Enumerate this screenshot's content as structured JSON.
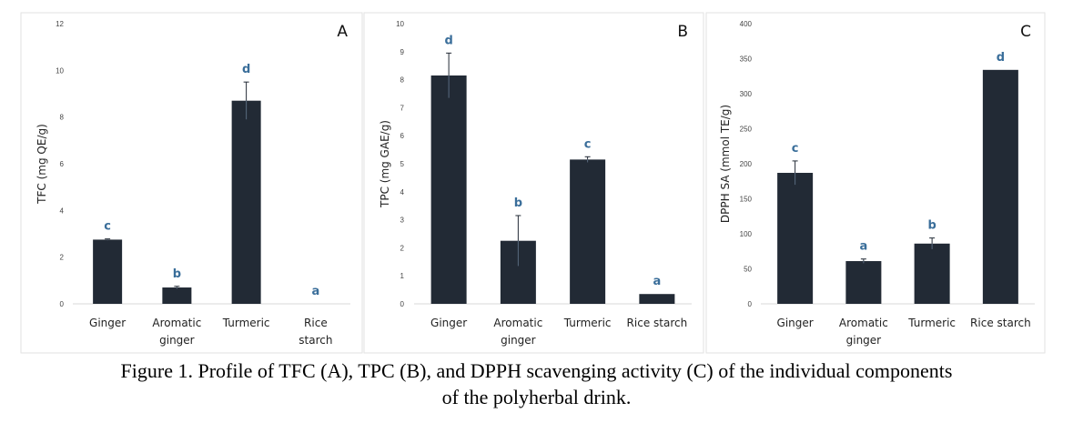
{
  "caption": {
    "line1": "Figure 1. Profile of TFC (A), TPC (B), and DPPH scavenging activity (C) of the individual components",
    "line2": "of the polyherbal drink."
  },
  "colors": {
    "bar": "#222a35",
    "significance_letter": "#3a6e9a"
  },
  "chart_data": [
    {
      "type": "bar",
      "panel": "A",
      "ylabel": "TFC (mg QE/g)",
      "ylim": [
        0,
        12
      ],
      "yticks": [
        0,
        2,
        4,
        6,
        8,
        10,
        12
      ],
      "categories": [
        [
          "Ginger"
        ],
        [
          "Aromatic",
          "ginger"
        ],
        [
          "Turmeric"
        ],
        [
          "Rice",
          "starch"
        ]
      ],
      "values": [
        2.75,
        0.7,
        8.7,
        0
      ],
      "errors": [
        0.03,
        0.05,
        0.8,
        0
      ],
      "letters": [
        "c",
        "b",
        "d",
        "a"
      ],
      "grid": false
    },
    {
      "type": "bar",
      "panel": "B",
      "ylabel": "TPC (mg GAE/g)",
      "ylim": [
        0,
        10
      ],
      "yticks": [
        0,
        1,
        2,
        3,
        4,
        5,
        6,
        7,
        8,
        9,
        10
      ],
      "categories": [
        [
          "Ginger"
        ],
        [
          "Aromatic",
          "ginger"
        ],
        [
          "Turmeric"
        ],
        [
          "Rice starch"
        ]
      ],
      "values": [
        8.15,
        2.25,
        5.15,
        0.35
      ],
      "errors": [
        0.8,
        0.9,
        0.1,
        0
      ],
      "letters": [
        "d",
        "b",
        "c",
        "a"
      ],
      "grid": false
    },
    {
      "type": "bar",
      "panel": "C",
      "ylabel": "DPPH SA (mmol TE/g)",
      "ylim": [
        0,
        400
      ],
      "yticks": [
        0,
        50,
        100,
        150,
        200,
        250,
        300,
        350,
        400
      ],
      "categories": [
        [
          "Ginger"
        ],
        [
          "Aromatic",
          "ginger"
        ],
        [
          "Turmeric"
        ],
        [
          "Rice starch"
        ]
      ],
      "values": [
        187,
        61,
        86,
        334
      ],
      "errors": [
        17,
        3,
        8,
        0
      ],
      "letters": [
        "c",
        "a",
        "b",
        "d"
      ],
      "grid": false
    }
  ]
}
